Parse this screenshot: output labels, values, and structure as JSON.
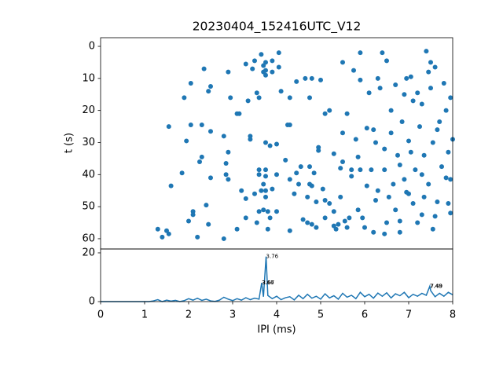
{
  "chart_data": [
    {
      "type": "scatter",
      "title": "20230404_152416UTC_V12",
      "y_label": "t (s)",
      "color": "#1f77b4",
      "xlim": [
        0,
        8
      ],
      "ylim": [
        -2.7,
        63.2
      ],
      "y_inverted": true,
      "yticks": [
        0,
        10,
        20,
        30,
        40,
        50,
        60
      ],
      "x": [
        1.55,
        1.3,
        1.4,
        1.5,
        1.55,
        1.6,
        1.85,
        1.9,
        1.95,
        2.0,
        2.05,
        2.1,
        2.1,
        2.05,
        2.2,
        2.25,
        2.3,
        2.3,
        2.35,
        2.4,
        2.45,
        2.45,
        2.5,
        2.5,
        2.5,
        2.8,
        2.8,
        2.85,
        2.85,
        2.9,
        2.9,
        2.9,
        2.95,
        3.1,
        3.1,
        3.15,
        3.2,
        3.3,
        3.3,
        3.3,
        3.35,
        3.4,
        3.4,
        3.45,
        3.5,
        3.5,
        3.55,
        3.55,
        3.6,
        3.6,
        3.6,
        3.6,
        3.65,
        3.65,
        3.7,
        3.7,
        3.7,
        3.7,
        3.75,
        3.75,
        3.75,
        3.75,
        3.75,
        3.75,
        3.75,
        3.75,
        3.8,
        3.8,
        3.85,
        3.85,
        3.9,
        3.9,
        3.9,
        4.0,
        4.0,
        4.0,
        4.05,
        4.05,
        4.1,
        4.2,
        4.25,
        4.3,
        4.3,
        4.3,
        4.3,
        4.4,
        4.45,
        4.45,
        4.5,
        4.55,
        4.6,
        4.65,
        4.7,
        4.7,
        4.75,
        4.75,
        4.75,
        4.8,
        4.8,
        4.8,
        4.85,
        4.9,
        4.9,
        4.95,
        4.95,
        5.0,
        5.05,
        5.1,
        5.1,
        5.2,
        5.2,
        5.3,
        5.3,
        5.3,
        5.35,
        5.4,
        5.45,
        5.45,
        5.5,
        5.5,
        5.55,
        5.6,
        5.6,
        5.65,
        5.7,
        5.7,
        5.75,
        5.85,
        5.9,
        5.9,
        5.9,
        5.95,
        6.0,
        6.05,
        6.05,
        6.1,
        6.15,
        6.2,
        6.25,
        6.25,
        6.3,
        6.35,
        6.4,
        6.45,
        6.45,
        6.5,
        6.5,
        6.55,
        6.6,
        6.65,
        6.7,
        6.75,
        6.8,
        6.8,
        6.8,
        6.85,
        6.9,
        6.95,
        7.0,
        7.0,
        7.05,
        7.1,
        7.1,
        7.15,
        7.2,
        7.25,
        7.3,
        7.3,
        7.35,
        7.4,
        7.45,
        7.5,
        7.5,
        7.55,
        7.6,
        7.65,
        7.7,
        7.75,
        7.8,
        7.85,
        7.9,
        7.95,
        8.0,
        7.95,
        7.9,
        7.6,
        7.3,
        6.9,
        6.6,
        6.2,
        5.8,
        5.5,
        5.1,
        6.7,
        7.05,
        7.45,
        7.85,
        7.55,
        7.2,
        6.45,
        6.95,
        5.85,
        6.3,
        7.65,
        7.95,
        7.35
      ],
      "values": [
        25,
        57,
        59.5,
        57.5,
        58.5,
        43.5,
        39.5,
        16,
        29.5,
        54.5,
        11.5,
        52.5,
        51.5,
        24.5,
        59.5,
        36,
        24.5,
        34.5,
        7,
        49.5,
        55.5,
        14,
        12.5,
        26.5,
        41,
        28,
        60,
        36.5,
        40,
        41.5,
        33,
        8,
        16,
        21,
        57,
        21,
        45,
        47.5,
        53.5,
        5.5,
        17,
        28,
        29,
        7,
        46,
        4.5,
        14.5,
        55,
        51.5,
        38.5,
        40,
        16,
        2.5,
        45,
        6,
        8,
        43,
        51,
        5,
        7.5,
        9,
        30,
        38.5,
        45,
        47,
        40.5,
        51.5,
        57,
        31,
        53.5,
        8,
        4.5,
        44.5,
        51.5,
        30.5,
        40,
        6.5,
        2,
        14,
        35.5,
        24.5,
        41.5,
        57.5,
        24.5,
        16,
        46,
        11,
        39.5,
        43,
        37.5,
        54,
        10,
        47,
        55,
        43,
        16,
        37.5,
        10,
        55.5,
        43.5,
        39.5,
        48.5,
        56.5,
        31.5,
        32.5,
        10.5,
        44.5,
        53.5,
        21,
        20,
        49,
        56,
        33.5,
        51.5,
        57,
        55.5,
        38,
        47,
        5,
        36,
        54.5,
        21,
        56.5,
        53.5,
        38.5,
        40.5,
        7.5,
        34.5,
        2,
        10.5,
        38.5,
        53.5,
        56.5,
        25.5,
        43.5,
        14.5,
        38.5,
        58,
        30,
        48,
        10,
        13,
        2,
        32,
        38.5,
        4.5,
        55,
        47,
        27,
        43,
        12,
        34,
        37,
        54.5,
        58,
        23.5,
        41.5,
        10,
        29.5,
        46,
        9.5,
        17,
        49,
        38.5,
        14.5,
        25,
        52.5,
        40,
        34,
        1.5,
        43,
        5,
        13,
        30,
        53,
        48.5,
        23.5,
        37.5,
        11.5,
        41,
        33,
        16,
        29,
        52,
        49,
        6.5,
        18,
        15,
        20,
        26,
        29,
        27,
        48,
        51,
        33,
        8,
        20,
        57,
        55,
        58.5,
        45.5,
        51,
        45,
        26,
        41.5,
        47
      ]
    },
    {
      "type": "line",
      "x_label": "IPI (ms)",
      "color": "#1f77b4",
      "xlim": [
        0,
        8
      ],
      "ylim": [
        0,
        21.6
      ],
      "xticks": [
        0,
        1,
        2,
        3,
        4,
        5,
        6,
        7,
        8
      ],
      "yticks": [
        0,
        20
      ],
      "x": [
        0,
        0.1,
        0.2,
        0.3,
        0.4,
        0.5,
        0.6,
        0.7,
        0.8,
        0.9,
        1.0,
        1.1,
        1.2,
        1.3,
        1.4,
        1.5,
        1.6,
        1.7,
        1.8,
        1.9,
        2.0,
        2.1,
        2.2,
        2.3,
        2.4,
        2.5,
        2.6,
        2.7,
        2.8,
        2.9,
        3.0,
        3.1,
        3.2,
        3.3,
        3.4,
        3.5,
        3.6,
        3.66,
        3.7,
        3.76,
        3.8,
        3.9,
        4.0,
        4.1,
        4.2,
        4.3,
        4.4,
        4.5,
        4.6,
        4.7,
        4.8,
        4.9,
        5.0,
        5.1,
        5.2,
        5.3,
        5.4,
        5.5,
        5.6,
        5.7,
        5.8,
        5.9,
        6.0,
        6.1,
        6.2,
        6.3,
        6.4,
        6.5,
        6.6,
        6.7,
        6.8,
        6.9,
        7.0,
        7.1,
        7.2,
        7.3,
        7.4,
        7.48,
        7.5,
        7.6,
        7.7,
        7.8,
        7.9,
        8.0
      ],
      "values": [
        0,
        0,
        0,
        0,
        0,
        0,
        0,
        0,
        0,
        0,
        0,
        0,
        0.3,
        0.8,
        0,
        0.6,
        0.2,
        0.5,
        0,
        0.4,
        1.2,
        0.6,
        1.4,
        0.5,
        1.0,
        0.3,
        0.1,
        0.6,
        1.8,
        1.0,
        0.4,
        1.2,
        0.6,
        1.6,
        0.8,
        1.4,
        1.0,
        7.7,
        2.0,
        18.5,
        2.5,
        1.2,
        2.2,
        0.8,
        1.6,
        2.0,
        0.7,
        2.6,
        1.2,
        3.0,
        1.4,
        2.2,
        1.0,
        3.2,
        1.5,
        2.4,
        1.0,
        3.4,
        1.8,
        2.6,
        1.2,
        3.8,
        2.0,
        3.0,
        1.4,
        3.5,
        2.2,
        3.6,
        1.5,
        3.2,
        2.4,
        3.8,
        1.6,
        3.0,
        2.2,
        3.4,
        2.6,
        6.3,
        4.5,
        2.0,
        3.4,
        2.2,
        3.8,
        2.8
      ],
      "annotations": [
        {
          "text": "3.76",
          "x": 3.76,
          "y": 18.5
        },
        {
          "text": "3.66",
          "x": 3.66,
          "y": 7.7
        },
        {
          "text": "3.67",
          "x": 3.67,
          "y": 7.7
        },
        {
          "text": "7.48",
          "x": 7.48,
          "y": 6.3
        },
        {
          "text": "7.49",
          "x": 7.49,
          "y": 6.3
        }
      ]
    }
  ]
}
